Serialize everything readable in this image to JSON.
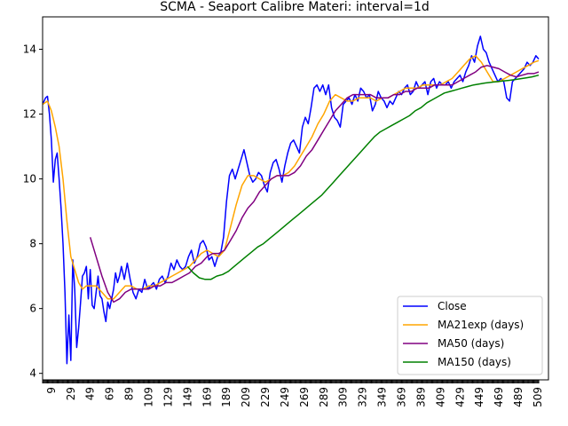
{
  "chart_data": {
    "type": "line",
    "title": "SCMA - Seaport Calibre Materi: interval=1d",
    "xlabel": "",
    "ylabel": "",
    "xlim": [
      0,
      520
    ],
    "ylim": [
      3.8,
      15.0
    ],
    "yticks": [
      4,
      6,
      8,
      10,
      12,
      14
    ],
    "xticks": [
      9,
      29,
      49,
      69,
      89,
      109,
      129,
      149,
      169,
      189,
      209,
      229,
      249,
      269,
      289,
      309,
      329,
      349,
      369,
      389,
      409,
      429,
      449,
      469,
      489,
      509
    ],
    "grid": false,
    "legend_position": "lower-right",
    "series": [
      {
        "name": "Close",
        "color": "#0000ff",
        "x": [
          0,
          3,
          5,
          7,
          9,
          11,
          13,
          15,
          17,
          19,
          21,
          23,
          25,
          27,
          29,
          31,
          33,
          35,
          37,
          39,
          41,
          43,
          45,
          47,
          49,
          51,
          53,
          55,
          57,
          59,
          61,
          63,
          65,
          67,
          69,
          71,
          73,
          75,
          77,
          79,
          81,
          84,
          87,
          90,
          93,
          96,
          99,
          102,
          105,
          108,
          111,
          114,
          117,
          120,
          123,
          126,
          129,
          132,
          135,
          138,
          141,
          144,
          147,
          150,
          153,
          156,
          159,
          162,
          165,
          168,
          171,
          174,
          177,
          180,
          183,
          186,
          189,
          192,
          195,
          198,
          201,
          204,
          207,
          210,
          213,
          216,
          219,
          222,
          225,
          228,
          231,
          234,
          237,
          240,
          243,
          246,
          249,
          252,
          255,
          258,
          261,
          264,
          267,
          270,
          273,
          276,
          279,
          282,
          285,
          288,
          291,
          294,
          297,
          300,
          303,
          306,
          309,
          312,
          315,
          318,
          321,
          324,
          327,
          330,
          333,
          336,
          339,
          342,
          345,
          348,
          351,
          354,
          357,
          360,
          363,
          366,
          369,
          372,
          375,
          378,
          381,
          384,
          387,
          390,
          393,
          396,
          399,
          402,
          405,
          408,
          411,
          414,
          417,
          420,
          423,
          426,
          429,
          432,
          435,
          438,
          441,
          444,
          447,
          450,
          453,
          456,
          459,
          462,
          465,
          468,
          471,
          474,
          477,
          480,
          483,
          486,
          489,
          492,
          495,
          498,
          501,
          504,
          507,
          510
        ],
        "y": [
          12.3,
          12.5,
          12.55,
          12.0,
          11.2,
          9.9,
          10.6,
          10.8,
          10.0,
          9.1,
          8.0,
          6.5,
          4.3,
          5.8,
          4.4,
          7.5,
          6.6,
          4.8,
          5.4,
          6.2,
          7.0,
          7.1,
          7.3,
          6.3,
          7.2,
          6.1,
          6.0,
          6.5,
          7.0,
          6.4,
          6.3,
          5.9,
          5.6,
          6.2,
          6.0,
          6.3,
          6.6,
          7.1,
          6.8,
          7.0,
          7.3,
          6.9,
          7.4,
          6.9,
          6.5,
          6.3,
          6.6,
          6.5,
          6.9,
          6.6,
          6.7,
          6.8,
          6.6,
          6.9,
          7.0,
          6.8,
          7.0,
          7.4,
          7.2,
          7.5,
          7.3,
          7.2,
          7.3,
          7.6,
          7.8,
          7.4,
          7.6,
          8.0,
          8.1,
          7.9,
          7.5,
          7.6,
          7.3,
          7.6,
          7.7,
          8.2,
          9.3,
          10.1,
          10.3,
          10.0,
          10.3,
          10.6,
          10.9,
          10.5,
          10.1,
          9.9,
          10.0,
          10.2,
          10.1,
          9.8,
          9.6,
          10.2,
          10.5,
          10.6,
          10.3,
          9.9,
          10.4,
          10.8,
          11.1,
          11.2,
          11.0,
          10.8,
          11.6,
          11.9,
          11.7,
          12.2,
          12.8,
          12.9,
          12.7,
          12.9,
          12.6,
          12.9,
          12.2,
          11.9,
          11.8,
          11.6,
          12.3,
          12.4,
          12.5,
          12.3,
          12.6,
          12.4,
          12.8,
          12.7,
          12.5,
          12.6,
          12.1,
          12.3,
          12.7,
          12.5,
          12.4,
          12.2,
          12.4,
          12.3,
          12.5,
          12.7,
          12.6,
          12.8,
          12.9,
          12.6,
          12.7,
          13.0,
          12.8,
          12.9,
          13.0,
          12.6,
          13.0,
          13.1,
          12.8,
          13.0,
          12.9,
          12.9,
          13.0,
          12.8,
          13.0,
          13.1,
          13.2,
          13.0,
          13.3,
          13.5,
          13.8,
          13.6,
          14.1,
          14.4,
          14.0,
          13.9,
          13.6,
          13.4,
          13.2,
          13.0,
          13.1,
          13.0,
          12.5,
          12.4,
          13.0,
          13.1,
          13.2,
          13.3,
          13.4,
          13.6,
          13.5,
          13.6,
          13.8,
          13.7
        ]
      },
      {
        "name": "MA21exp (days)",
        "color": "#ffa500",
        "x": [
          0,
          5,
          9,
          13,
          17,
          21,
          25,
          29,
          33,
          37,
          41,
          45,
          49,
          55,
          61,
          67,
          73,
          79,
          85,
          91,
          97,
          103,
          109,
          115,
          121,
          127,
          133,
          139,
          145,
          151,
          157,
          163,
          169,
          175,
          181,
          187,
          193,
          199,
          205,
          211,
          217,
          223,
          229,
          235,
          241,
          247,
          253,
          259,
          265,
          271,
          277,
          283,
          289,
          295,
          301,
          307,
          313,
          319,
          325,
          331,
          337,
          343,
          349,
          355,
          361,
          367,
          373,
          379,
          385,
          391,
          397,
          403,
          409,
          415,
          421,
          427,
          433,
          439,
          445,
          451,
          457,
          463,
          469,
          475,
          481,
          487,
          493,
          499,
          505,
          510
        ],
        "y": [
          12.3,
          12.4,
          12.1,
          11.6,
          11.0,
          10.0,
          8.7,
          7.6,
          7.2,
          6.8,
          6.6,
          6.7,
          6.7,
          6.7,
          6.5,
          6.3,
          6.3,
          6.5,
          6.7,
          6.7,
          6.6,
          6.6,
          6.7,
          6.7,
          6.8,
          6.9,
          7.0,
          7.1,
          7.2,
          7.3,
          7.5,
          7.7,
          7.8,
          7.7,
          7.6,
          7.8,
          8.5,
          9.2,
          9.8,
          10.1,
          10.1,
          10.0,
          9.9,
          10.0,
          10.1,
          10.1,
          10.2,
          10.4,
          10.7,
          11.0,
          11.3,
          11.7,
          12.0,
          12.4,
          12.6,
          12.5,
          12.4,
          12.4,
          12.5,
          12.5,
          12.5,
          12.4,
          12.5,
          12.5,
          12.6,
          12.7,
          12.8,
          12.8,
          12.8,
          12.9,
          12.9,
          12.9,
          12.9,
          13.0,
          13.1,
          13.3,
          13.5,
          13.7,
          13.8,
          13.6,
          13.3,
          13.0,
          13.0,
          13.1,
          13.2,
          13.3,
          13.4,
          13.5,
          13.6,
          13.65
        ]
      },
      {
        "name": "MA50 (days)",
        "color": "#800080",
        "x": [
          49,
          55,
          61,
          67,
          73,
          79,
          85,
          91,
          97,
          103,
          109,
          115,
          121,
          127,
          133,
          139,
          145,
          151,
          157,
          163,
          169,
          175,
          181,
          187,
          193,
          199,
          205,
          211,
          217,
          223,
          229,
          235,
          241,
          247,
          253,
          259,
          265,
          271,
          277,
          283,
          289,
          295,
          301,
          307,
          313,
          319,
          325,
          331,
          337,
          343,
          349,
          355,
          361,
          367,
          373,
          379,
          385,
          391,
          397,
          403,
          409,
          415,
          421,
          427,
          433,
          439,
          445,
          451,
          457,
          463,
          469,
          475,
          481,
          487,
          493,
          499,
          505,
          510
        ],
        "y": [
          8.2,
          7.6,
          7.0,
          6.5,
          6.2,
          6.3,
          6.5,
          6.6,
          6.6,
          6.6,
          6.6,
          6.7,
          6.7,
          6.8,
          6.8,
          6.9,
          7.0,
          7.1,
          7.3,
          7.4,
          7.6,
          7.7,
          7.7,
          7.8,
          8.1,
          8.4,
          8.8,
          9.1,
          9.3,
          9.6,
          9.8,
          10.0,
          10.1,
          10.1,
          10.1,
          10.2,
          10.4,
          10.7,
          10.9,
          11.2,
          11.5,
          11.8,
          12.1,
          12.3,
          12.5,
          12.6,
          12.6,
          12.6,
          12.6,
          12.5,
          12.5,
          12.5,
          12.6,
          12.6,
          12.7,
          12.7,
          12.8,
          12.8,
          12.8,
          12.9,
          12.9,
          12.9,
          12.9,
          13.0,
          13.1,
          13.2,
          13.3,
          13.45,
          13.5,
          13.45,
          13.4,
          13.3,
          13.2,
          13.15,
          13.2,
          13.25,
          13.25,
          13.3
        ]
      },
      {
        "name": "MA150 (days)",
        "color": "#008000",
        "x": [
          149,
          155,
          161,
          167,
          173,
          179,
          185,
          191,
          197,
          203,
          209,
          215,
          221,
          227,
          233,
          239,
          245,
          251,
          257,
          263,
          269,
          275,
          281,
          287,
          293,
          299,
          305,
          311,
          317,
          323,
          329,
          335,
          341,
          347,
          353,
          359,
          365,
          371,
          377,
          383,
          389,
          395,
          401,
          407,
          413,
          419,
          425,
          431,
          437,
          443,
          449,
          455,
          461,
          467,
          473,
          479,
          485,
          491,
          497,
          503,
          510
        ],
        "y": [
          7.3,
          7.1,
          6.95,
          6.9,
          6.9,
          7.0,
          7.05,
          7.15,
          7.3,
          7.45,
          7.6,
          7.75,
          7.9,
          8.0,
          8.15,
          8.3,
          8.45,
          8.6,
          8.75,
          8.9,
          9.05,
          9.2,
          9.35,
          9.5,
          9.7,
          9.9,
          10.1,
          10.3,
          10.5,
          10.7,
          10.9,
          11.1,
          11.3,
          11.45,
          11.55,
          11.65,
          11.75,
          11.85,
          11.95,
          12.1,
          12.2,
          12.35,
          12.45,
          12.55,
          12.65,
          12.7,
          12.75,
          12.8,
          12.85,
          12.9,
          12.93,
          12.96,
          12.98,
          13.0,
          13.02,
          13.04,
          13.06,
          13.09,
          13.12,
          13.15,
          13.2
        ]
      }
    ]
  }
}
